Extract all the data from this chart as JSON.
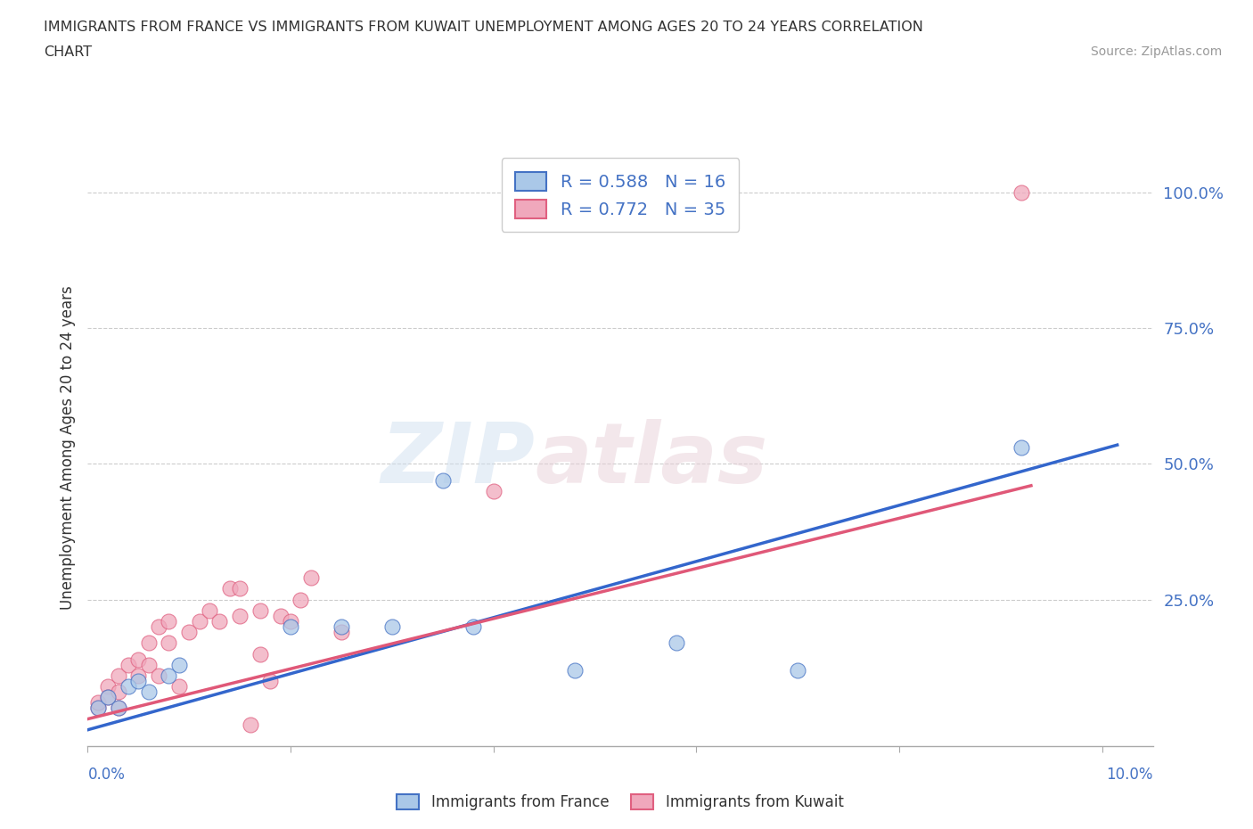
{
  "title_line1": "IMMIGRANTS FROM FRANCE VS IMMIGRANTS FROM KUWAIT UNEMPLOYMENT AMONG AGES 20 TO 24 YEARS CORRELATION",
  "title_line2": "CHART",
  "source_text": "Source: ZipAtlas.com",
  "xlabel_bottom_left": "0.0%",
  "xlabel_bottom_right": "10.0%",
  "ylabel": "Unemployment Among Ages 20 to 24 years",
  "xlim": [
    0.0,
    0.105
  ],
  "ylim": [
    -0.02,
    1.08
  ],
  "ytick_labels": [
    "100.0%",
    "75.0%",
    "50.0%",
    "25.0%"
  ],
  "ytick_values": [
    1.0,
    0.75,
    0.5,
    0.25
  ],
  "ytick_colors": [
    "#4472c4",
    "#4472c4",
    "#4472c4",
    "#4472c4"
  ],
  "watermark_zip": "ZIP",
  "watermark_atlas": "atlas",
  "france_color": "#aac8e8",
  "kuwait_color": "#f0a8bc",
  "france_edge_color": "#4472c4",
  "kuwait_edge_color": "#e06080",
  "france_line_color": "#3366cc",
  "kuwait_line_color": "#e05878",
  "france_scatter_x": [
    0.001,
    0.002,
    0.003,
    0.004,
    0.005,
    0.006,
    0.008,
    0.009,
    0.02,
    0.025,
    0.03,
    0.035,
    0.038,
    0.048,
    0.058,
    0.07,
    0.092
  ],
  "france_scatter_y": [
    0.05,
    0.07,
    0.05,
    0.09,
    0.1,
    0.08,
    0.11,
    0.13,
    0.2,
    0.2,
    0.2,
    0.47,
    0.2,
    0.12,
    0.17,
    0.12,
    0.53
  ],
  "kuwait_scatter_x": [
    0.001,
    0.001,
    0.002,
    0.002,
    0.003,
    0.003,
    0.003,
    0.004,
    0.005,
    0.005,
    0.006,
    0.006,
    0.007,
    0.007,
    0.008,
    0.008,
    0.009,
    0.01,
    0.011,
    0.012,
    0.013,
    0.014,
    0.015,
    0.015,
    0.016,
    0.017,
    0.017,
    0.018,
    0.019,
    0.02,
    0.021,
    0.022,
    0.025,
    0.04,
    0.092
  ],
  "kuwait_scatter_y": [
    0.05,
    0.06,
    0.09,
    0.07,
    0.11,
    0.08,
    0.05,
    0.13,
    0.14,
    0.11,
    0.17,
    0.13,
    0.11,
    0.2,
    0.21,
    0.17,
    0.09,
    0.19,
    0.21,
    0.23,
    0.21,
    0.27,
    0.27,
    0.22,
    0.02,
    0.15,
    0.23,
    0.1,
    0.22,
    0.21,
    0.25,
    0.29,
    0.19,
    0.45,
    1.0
  ],
  "france_line_x": [
    0.0,
    0.1015
  ],
  "france_line_y": [
    0.01,
    0.535
  ],
  "kuwait_line_x": [
    0.0,
    0.093
  ],
  "kuwait_line_y": [
    0.03,
    0.46
  ],
  "background_color": "#ffffff",
  "legend_bottom_france": "Immigrants from France",
  "legend_bottom_kuwait": "Immigrants from Kuwait",
  "tick_label_color": "#4472c4"
}
